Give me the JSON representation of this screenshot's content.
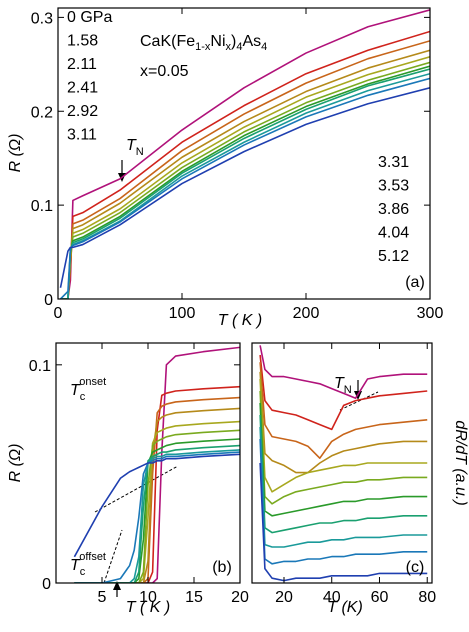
{
  "chart_data": [
    {
      "type": "line",
      "panel_label": "(a)",
      "xlabel": "T ( K )",
      "ylabel": "R (Ω)",
      "xlim": [
        0,
        300
      ],
      "ylim": [
        0,
        0.31
      ],
      "xticks": [
        0,
        100,
        200,
        300
      ],
      "yticks": [
        0,
        0.1,
        0.2,
        0.3
      ],
      "annotations": {
        "compound": [
          "CaK(Fe",
          "1-x",
          "Ni",
          "x",
          ")",
          "4",
          "As",
          "4"
        ],
        "doping": "x=0.05",
        "neel": [
          "T",
          "N"
        ]
      },
      "x": [
        2,
        8,
        10,
        12,
        20,
        50,
        100,
        150,
        200,
        250,
        300
      ],
      "series": [
        {
          "name": "0 GPa",
          "color": "#b0127a",
          "values": [
            0,
            0,
            0.02,
            0.105,
            0.11,
            0.128,
            0.18,
            0.225,
            0.262,
            0.29,
            0.308
          ]
        },
        {
          "name": "1.58",
          "color": "#d0231c",
          "values": [
            0,
            0,
            0.03,
            0.088,
            0.092,
            0.116,
            0.167,
            0.206,
            0.24,
            0.265,
            0.285
          ]
        },
        {
          "name": "2.11",
          "color": "#c8651a",
          "values": [
            0,
            0,
            0.035,
            0.08,
            0.084,
            0.107,
            0.158,
            0.197,
            0.23,
            0.256,
            0.275
          ]
        },
        {
          "name": "2.41",
          "color": "#b58a1a",
          "values": [
            0,
            0,
            0.04,
            0.075,
            0.079,
            0.102,
            0.151,
            0.189,
            0.221,
            0.246,
            0.265
          ]
        },
        {
          "name": "2.92",
          "color": "#a8a81f",
          "values": [
            0,
            0,
            0.045,
            0.07,
            0.074,
            0.096,
            0.145,
            0.183,
            0.215,
            0.239,
            0.258
          ]
        },
        {
          "name": "3.11",
          "color": "#7aaa1f",
          "values": [
            0,
            0,
            0.048,
            0.066,
            0.07,
            0.092,
            0.14,
            0.178,
            0.209,
            0.233,
            0.252
          ]
        },
        {
          "name": "3.31",
          "color": "#2a9a2a",
          "values": [
            0,
            0,
            0.05,
            0.062,
            0.066,
            0.088,
            0.136,
            0.174,
            0.205,
            0.229,
            0.248
          ]
        },
        {
          "name": "3.53",
          "color": "#1aa070",
          "values": [
            0,
            0,
            0.052,
            0.06,
            0.064,
            0.086,
            0.134,
            0.171,
            0.202,
            0.227,
            0.245
          ]
        },
        {
          "name": "3.86",
          "color": "#1a9a9a",
          "values": [
            0,
            0,
            0.053,
            0.058,
            0.062,
            0.083,
            0.131,
            0.167,
            0.198,
            0.222,
            0.24
          ]
        },
        {
          "name": "4.04",
          "color": "#1a78b8",
          "values": [
            0,
            0.008,
            0.054,
            0.057,
            0.061,
            0.082,
            0.128,
            0.164,
            0.194,
            0.217,
            0.235
          ]
        },
        {
          "name": "5.12",
          "color": "#1f3fb0",
          "values": [
            0.012,
            0.051,
            0.055,
            0.055,
            0.058,
            0.079,
            0.123,
            0.157,
            0.186,
            0.208,
            0.225
          ]
        }
      ]
    },
    {
      "type": "line",
      "panel_label": "(b)",
      "xlabel": "T ( K )",
      "ylabel": "R (Ω)",
      "xlim": [
        0,
        20
      ],
      "ylim": [
        0,
        0.11
      ],
      "xticks": [
        5,
        10,
        15,
        20
      ],
      "yticks": [
        0,
        0.1
      ],
      "annotations": {
        "onset": [
          "T",
          "c",
          "onset"
        ],
        "offset": [
          "T",
          "c",
          "offset"
        ]
      },
      "x": [
        2,
        5,
        7,
        8,
        8.5,
        9,
        9.5,
        10,
        10.5,
        11,
        11.5,
        12,
        13,
        16,
        20
      ],
      "series": [
        {
          "color": "#b0127a",
          "values": [
            0,
            0,
            0,
            0,
            0,
            0,
            0,
            0,
            0,
            0.002,
            0.06,
            0.1,
            0.104,
            0.106,
            0.108
          ]
        },
        {
          "color": "#d0231c",
          "values": [
            0,
            0,
            0,
            0,
            0,
            0,
            0,
            0,
            0.005,
            0.07,
            0.086,
            0.087,
            0.088,
            0.089,
            0.09
          ]
        },
        {
          "color": "#c8651a",
          "values": [
            0,
            0,
            0,
            0,
            0,
            0,
            0,
            0.002,
            0.05,
            0.078,
            0.081,
            0.082,
            0.083,
            0.084,
            0.085
          ]
        },
        {
          "color": "#b58a1a",
          "values": [
            0,
            0,
            0,
            0,
            0,
            0,
            0,
            0.01,
            0.06,
            0.074,
            0.076,
            0.077,
            0.078,
            0.079,
            0.08
          ]
        },
        {
          "color": "#a8a81f",
          "values": [
            0,
            0,
            0,
            0,
            0,
            0,
            0.002,
            0.03,
            0.064,
            0.069,
            0.07,
            0.071,
            0.072,
            0.073,
            0.074
          ]
        },
        {
          "color": "#7aaa1f",
          "values": [
            0,
            0,
            0,
            0,
            0,
            0,
            0.005,
            0.045,
            0.063,
            0.065,
            0.066,
            0.067,
            0.068,
            0.069,
            0.07
          ]
        },
        {
          "color": "#2a9a2a",
          "values": [
            0,
            0,
            0,
            0,
            0,
            0.002,
            0.02,
            0.055,
            0.06,
            0.061,
            0.062,
            0.063,
            0.064,
            0.065,
            0.066
          ]
        },
        {
          "color": "#1aa070",
          "values": [
            0,
            0,
            0,
            0,
            0,
            0.005,
            0.035,
            0.056,
            0.058,
            0.059,
            0.06,
            0.06,
            0.061,
            0.062,
            0.063
          ]
        },
        {
          "color": "#1a9a9a",
          "values": [
            0,
            0,
            0,
            0,
            0.002,
            0.012,
            0.045,
            0.055,
            0.057,
            0.058,
            0.058,
            0.059,
            0.059,
            0.06,
            0.061
          ]
        },
        {
          "color": "#1a78b8",
          "values": [
            0,
            0,
            0.002,
            0.008,
            0.015,
            0.03,
            0.05,
            0.055,
            0.056,
            0.057,
            0.057,
            0.058,
            0.058,
            0.059,
            0.06
          ]
        },
        {
          "color": "#1f3fb0",
          "values": [
            0.012,
            0.035,
            0.048,
            0.051,
            0.052,
            0.053,
            0.054,
            0.055,
            0.055,
            0.056,
            0.056,
            0.057,
            0.057,
            0.058,
            0.059
          ]
        }
      ]
    },
    {
      "type": "line",
      "panel_label": "(c)",
      "xlabel": "T (K)",
      "ylabel": "dR/dT (a.u.)",
      "xlim": [
        6.6,
        82
      ],
      "ylim": [
        0,
        10
      ],
      "xticks": [
        20,
        40,
        60,
        80
      ],
      "annotations": {
        "neel": [
          "T",
          "N"
        ]
      },
      "x": [
        10,
        12,
        15,
        20,
        25,
        30,
        35,
        40,
        45,
        50,
        55,
        60,
        70,
        80
      ],
      "series": [
        {
          "color": "#b0127a",
          "values": [
            9.9,
            8.9,
            8.6,
            8.6,
            8.5,
            8.4,
            8.3,
            8.1,
            7.9,
            7.7,
            8.5,
            8.6,
            8.7,
            8.7
          ]
        },
        {
          "color": "#d0231c",
          "values": [
            9.5,
            7.6,
            7.2,
            7.1,
            7.0,
            6.8,
            6.6,
            6.4,
            7.4,
            7.6,
            7.7,
            7.8,
            7.9,
            8.0
          ]
        },
        {
          "color": "#c8651a",
          "values": [
            9.2,
            6.6,
            6.1,
            6.0,
            5.9,
            5.7,
            5.2,
            5.9,
            6.2,
            6.4,
            6.5,
            6.6,
            6.7,
            6.8
          ]
        },
        {
          "color": "#b58a1a",
          "values": [
            8.8,
            5.4,
            5.1,
            4.9,
            4.6,
            4.6,
            5.0,
            5.3,
            5.5,
            5.6,
            5.7,
            5.8,
            5.9,
            5.9
          ]
        },
        {
          "color": "#a8a81f",
          "values": [
            8.5,
            4.4,
            3.8,
            4.1,
            4.4,
            4.6,
            4.7,
            4.8,
            4.9,
            4.9,
            5.0,
            5.0,
            5.0,
            5.0
          ]
        },
        {
          "color": "#7aaa1f",
          "values": [
            8.0,
            3.6,
            3.3,
            3.6,
            3.8,
            3.9,
            4.0,
            4.1,
            4.2,
            4.2,
            4.3,
            4.3,
            4.4,
            4.4
          ]
        },
        {
          "color": "#2a9a2a",
          "values": [
            7.5,
            3.0,
            2.8,
            2.9,
            3.0,
            3.1,
            3.2,
            3.3,
            3.4,
            3.4,
            3.5,
            3.5,
            3.6,
            3.6
          ]
        },
        {
          "color": "#1aa070",
          "values": [
            7.0,
            2.3,
            2.1,
            2.2,
            2.3,
            2.4,
            2.5,
            2.5,
            2.6,
            2.6,
            2.7,
            2.7,
            2.8,
            2.8
          ]
        },
        {
          "color": "#1a9a9a",
          "values": [
            6.5,
            1.6,
            1.5,
            1.5,
            1.6,
            1.7,
            1.7,
            1.8,
            1.8,
            1.9,
            1.9,
            1.9,
            2.0,
            2.0
          ]
        },
        {
          "color": "#1a78b8",
          "values": [
            6.0,
            1.0,
            0.8,
            0.9,
            0.9,
            1.0,
            1.0,
            1.1,
            1.1,
            1.2,
            1.2,
            1.2,
            1.3,
            1.3
          ]
        },
        {
          "color": "#1f3fb0",
          "values": [
            5.0,
            0.6,
            0.2,
            0.1,
            0.2,
            0.2,
            0.2,
            0.3,
            0.3,
            0.3,
            0.3,
            0.4,
            0.4,
            0.4
          ]
        }
      ]
    }
  ]
}
